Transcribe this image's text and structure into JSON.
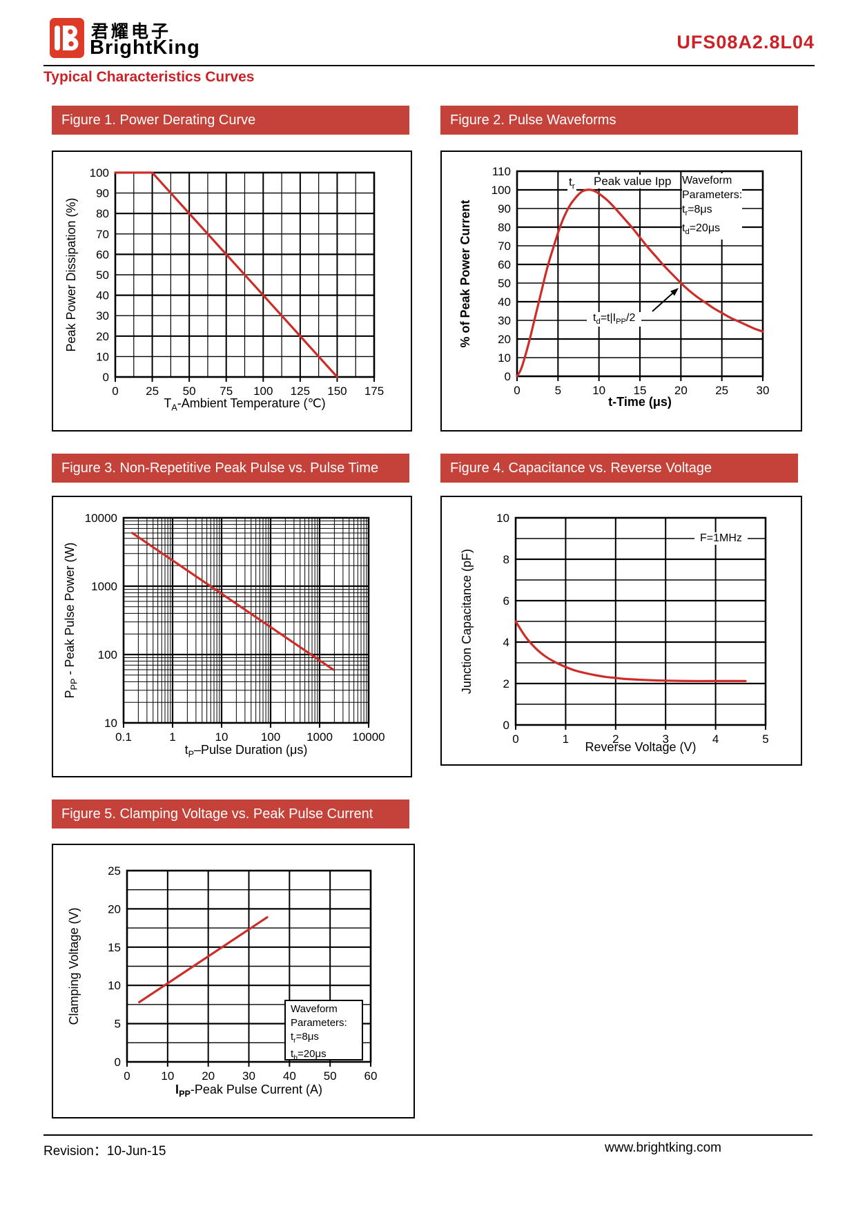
{
  "header": {
    "brand_cn": "君耀电子",
    "brand_en": "BrightKing",
    "part_number": "UFS08A2.8L04",
    "page_title": "Typical Characteristics Curves"
  },
  "footer": {
    "revision_label": "Revision：",
    "revision_date": "10-Jun-15",
    "website": "www.brightking.com"
  },
  "colors": {
    "bar_red": "#c4423a",
    "heading_red": "#cb2227",
    "curve_red": "#cc2d28",
    "logo_red": "#dd3a28",
    "grid_black": "#000000"
  },
  "icons": {
    "logo": "brightking-logo"
  },
  "chart_data": [
    {
      "id": "figure1",
      "type": "line",
      "title": "Figure 1. Power Derating Curve",
      "xlabel": "TA-Ambient Temperature (℃)",
      "ylabel": "Peak Power Dissipation (%)",
      "xlabel_parts": {
        "pre": "T",
        "sub": "A",
        "post": "-Ambient Temperature (℃)"
      },
      "xlim": [
        0,
        175
      ],
      "ylim": [
        0,
        100
      ],
      "x_ticks": [
        "0",
        "25",
        "50",
        "75",
        "100",
        "125",
        "150",
        "175"
      ],
      "y_ticks": [
        "0",
        "10",
        "20",
        "30",
        "40",
        "50",
        "60",
        "70",
        "80",
        "90",
        "100"
      ],
      "grid": "on",
      "series": [
        {
          "name": "power-derating",
          "points": [
            [
              0,
              100
            ],
            [
              25,
              100
            ],
            [
              150,
              0
            ]
          ]
        }
      ]
    },
    {
      "id": "figure2",
      "type": "line",
      "title": "Figure 2. Pulse Waveforms",
      "xlabel": "t-Time (μs)",
      "ylabel": "% of Peak Power Current",
      "xlim": [
        0,
        30
      ],
      "ylim": [
        0,
        110
      ],
      "x_ticks": [
        "0",
        "5",
        "10",
        "15",
        "20",
        "25",
        "30"
      ],
      "y_ticks": [
        "0",
        "10",
        "20",
        "30",
        "40",
        "50",
        "60",
        "70",
        "80",
        "90",
        "100",
        "110"
      ],
      "grid": "on",
      "series": [
        {
          "name": "pulse-waveform",
          "points": [
            [
              0,
              0
            ],
            [
              0.5,
              4
            ],
            [
              1,
              11
            ],
            [
              1.5,
              19
            ],
            [
              2,
              28
            ],
            [
              2.5,
              37
            ],
            [
              3,
              46
            ],
            [
              3.5,
              55
            ],
            [
              4,
              63
            ],
            [
              4.5,
              70
            ],
            [
              5,
              77
            ],
            [
              5.5,
              83
            ],
            [
              6,
              88
            ],
            [
              6.5,
              92
            ],
            [
              7,
              95
            ],
            [
              7.5,
              97.5
            ],
            [
              8,
              99.3
            ],
            [
              8.5,
              100
            ],
            [
              9,
              100
            ],
            [
              9.5,
              99.3
            ],
            [
              10,
              98
            ],
            [
              11,
              94.5
            ],
            [
              12,
              90
            ],
            [
              13,
              85
            ],
            [
              14,
              80
            ],
            [
              15,
              74.5
            ],
            [
              16,
              69
            ],
            [
              17,
              64
            ],
            [
              18,
              59
            ],
            [
              19,
              54.5
            ],
            [
              20,
              50
            ],
            [
              21,
              46
            ],
            [
              22,
              42.5
            ],
            [
              23,
              39.5
            ],
            [
              24,
              36.5
            ],
            [
              25,
              34
            ],
            [
              26,
              31.5
            ],
            [
              27,
              29.5
            ],
            [
              28,
              27.5
            ],
            [
              29,
              25.5
            ],
            [
              30,
              24
            ]
          ]
        }
      ],
      "annotations": {
        "rise_time": {
          "pre": "t",
          "sub": "r",
          "post": ""
        },
        "peak_label": "Peak value Ipp",
        "waveform_params": {
          "line1": "Waveform",
          "line2": "Parameters:",
          "line3": {
            "pre": "t",
            "sub": "r",
            "post": "=8μs"
          },
          "line4": {
            "pre": "t",
            "sub": "d",
            "post": "=20μs"
          }
        },
        "half_current": {
          "p1": "t",
          "s1": "d",
          "p2": "=t|I",
          "s2": "PP",
          "p3": "/2"
        }
      }
    },
    {
      "id": "figure3",
      "type": "line",
      "scale": "log-log",
      "title": "Figure 3. Non-Repetitive Peak Pulse vs. Pulse Time",
      "xlabel": "tP–Pulse Duration (μs)",
      "ylabel": "PPP - Peak Pulse Power (W)",
      "xlabel_parts": {
        "pre": "t",
        "sub": "P",
        "post": "–Pulse Duration (μs)"
      },
      "ylabel_parts": {
        "pre": "P",
        "sub": "PP",
        "post": " - Peak Pulse Power (W)"
      },
      "xlim": [
        0.1,
        10000
      ],
      "ylim": [
        10,
        10000
      ],
      "x_ticks": [
        "0.1",
        "1",
        "10",
        "100",
        "1000",
        "10000"
      ],
      "y_ticks": [
        "10",
        "100",
        "1000",
        "10000"
      ],
      "grid": "on",
      "series": [
        {
          "name": "peak-pulse-power",
          "points": [
            [
              0.15,
              6000
            ],
            [
              1900,
              60
            ]
          ]
        }
      ]
    },
    {
      "id": "figure4",
      "type": "line",
      "title": "Figure 4. Capacitance vs. Reverse Voltage",
      "xlabel": "Reverse Voltage (V)",
      "ylabel": "Junction Capacitance (pF)",
      "xlim": [
        0,
        5
      ],
      "ylim": [
        0,
        10
      ],
      "x_ticks": [
        "0",
        "1",
        "2",
        "3",
        "4",
        "5"
      ],
      "y_ticks": [
        "0",
        "2",
        "4",
        "6",
        "8",
        "10"
      ],
      "grid": "on",
      "series": [
        {
          "name": "junction-capacitance",
          "points": [
            [
              0,
              5
            ],
            [
              0.2,
              4.25
            ],
            [
              0.4,
              3.7
            ],
            [
              0.6,
              3.3
            ],
            [
              0.8,
              3.02
            ],
            [
              1,
              2.8
            ],
            [
              1.2,
              2.62
            ],
            [
              1.4,
              2.5
            ],
            [
              1.6,
              2.4
            ],
            [
              1.8,
              2.32
            ],
            [
              2,
              2.27
            ],
            [
              2.2,
              2.22
            ],
            [
              2.5,
              2.18
            ],
            [
              2.8,
              2.15
            ],
            [
              3,
              2.14
            ],
            [
              3.5,
              2.12
            ],
            [
              4,
              2.12
            ],
            [
              4.6,
              2.12
            ]
          ]
        }
      ],
      "annotations": {
        "frequency": "F=1MHz"
      }
    },
    {
      "id": "figure5",
      "type": "line",
      "title": "Figure 5. Clamping Voltage vs. Peak Pulse Current",
      "xlabel": "IPP-Peak Pulse Current (A)",
      "ylabel": "Clamping Voltage (V)",
      "xlabel_parts": {
        "pre": "I",
        "sub": "PP",
        "post": "-Peak Pulse Current (A)"
      },
      "xlim": [
        0,
        60
      ],
      "ylim": [
        0,
        25
      ],
      "x_ticks": [
        "0",
        "10",
        "20",
        "30",
        "40",
        "50",
        "60"
      ],
      "y_ticks": [
        "0",
        "5",
        "10",
        "15",
        "20",
        "25"
      ],
      "grid": "on",
      "series": [
        {
          "name": "clamping-voltage",
          "points": [
            [
              3,
              7.8
            ],
            [
              34.5,
              18.9
            ]
          ]
        }
      ],
      "annotations": {
        "waveform_params": {
          "line1": "Waveform",
          "line2": "Parameters:",
          "line3": {
            "pre": "t",
            "sub": "r",
            "post": "=8μs"
          },
          "line4": {
            "pre": "t",
            "sub": "b",
            "post": "=20μs"
          }
        }
      }
    }
  ]
}
